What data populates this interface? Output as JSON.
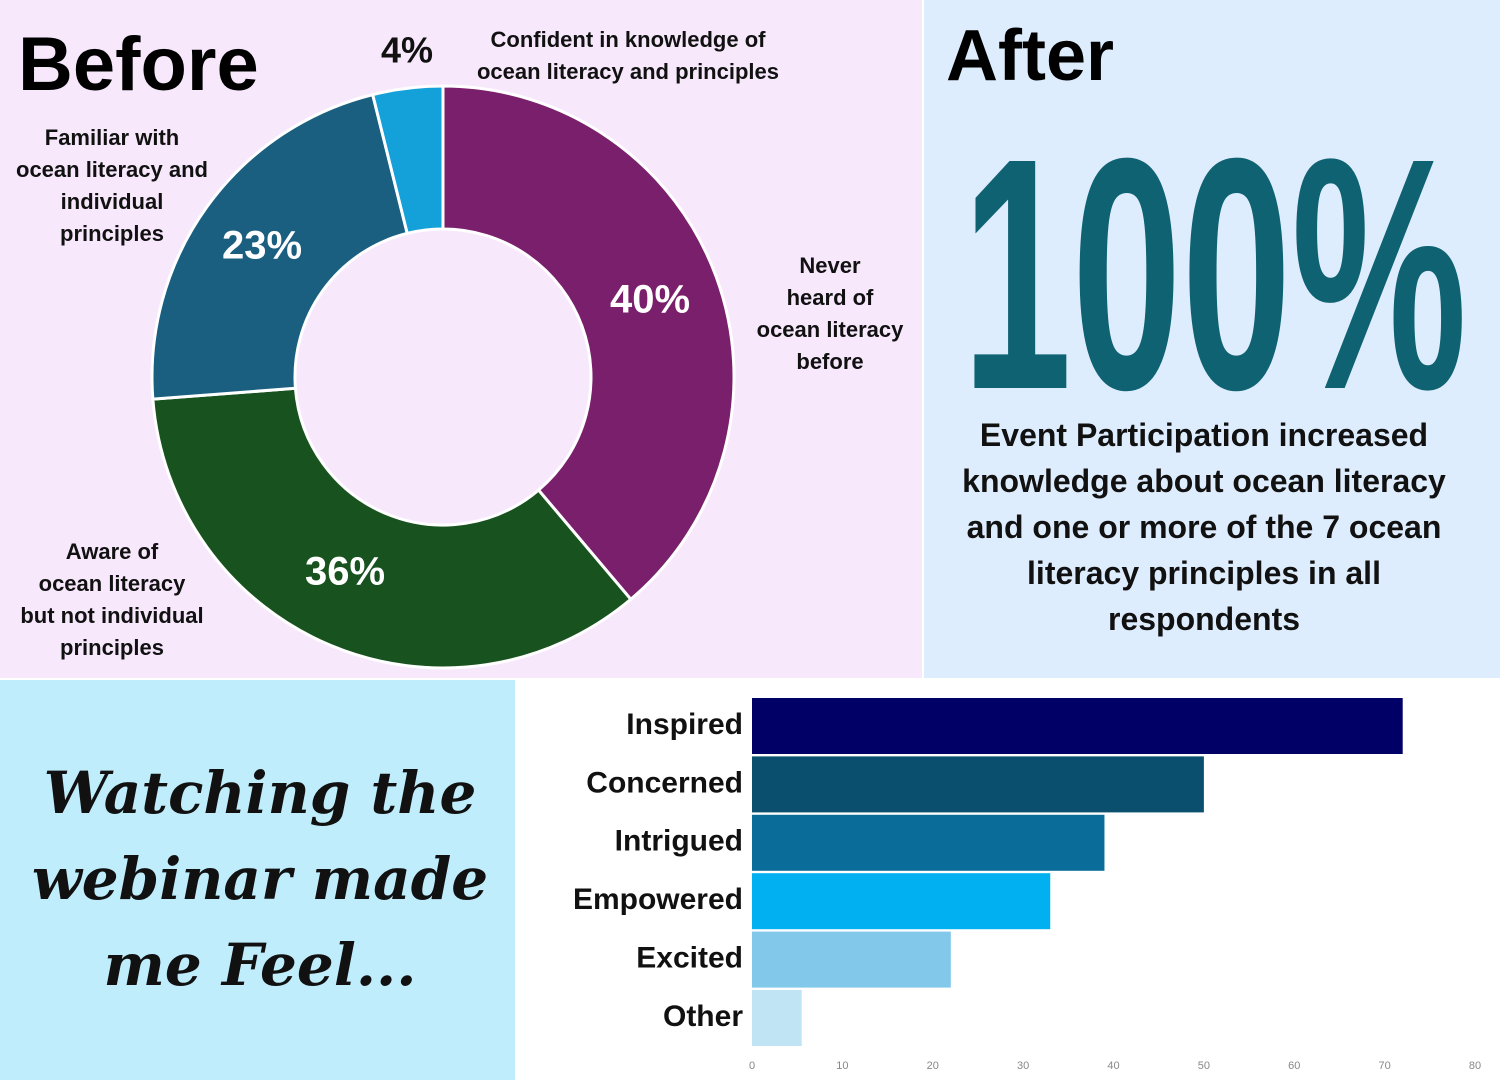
{
  "chart_data": [
    {
      "type": "donut",
      "title": "Before",
      "categories": [
        "Never\nheard of\nocean literacy\nbefore",
        "Aware of\nocean literacy\nbut not individual\nprinciples",
        "Familiar with\nocean literacy and\nindividual\nprinciples",
        "Confident in knowledge of\nocean literacy and principles"
      ],
      "values": [
        40,
        36,
        23,
        4
      ],
      "value_labels": [
        "40%",
        "36%",
        "23%",
        "4%"
      ],
      "colors": [
        "#7a1f6b",
        "#18521e",
        "#1a5e80",
        "#14a0d8"
      ]
    },
    {
      "type": "hbar",
      "title": "Watching the webinar made me Feel...",
      "categories": [
        "Inspired",
        "Concerned",
        "Intrigued",
        "Empowered",
        "Excited",
        "Other"
      ],
      "values": [
        72,
        50,
        39,
        33,
        22,
        5.5
      ],
      "colors": [
        "#000066",
        "#0a4f6e",
        "#0a6d99",
        "#00b0f0",
        "#82c8ea",
        "#c1e4f5"
      ],
      "xlim": [
        0,
        80
      ],
      "xticks": [
        0,
        10,
        20,
        30,
        40,
        50,
        60,
        70,
        80
      ],
      "grid": false
    }
  ],
  "after": {
    "title": "After",
    "headline": "100%",
    "text": "Event Participation increased knowledge about ocean literacy and one or more of the 7 ocean literacy principles in all respondents"
  }
}
